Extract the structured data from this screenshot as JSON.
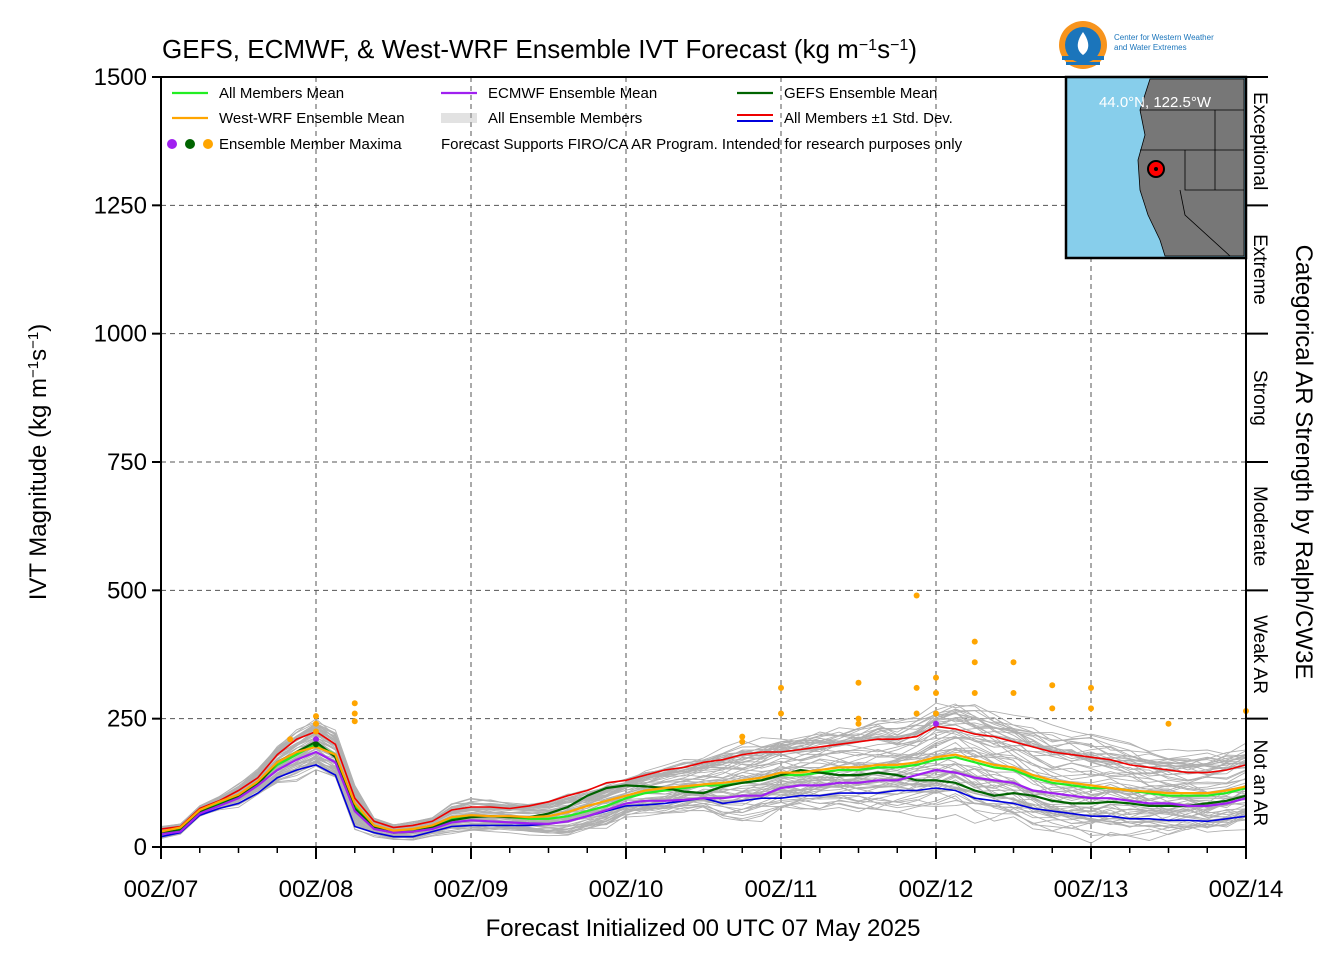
{
  "chart_data": {
    "type": "line",
    "title": "GEFS, ECMWF, & West-WRF Ensemble IVT Forecast (kg m⁻¹s⁻¹)",
    "title_parts": {
      "main": "GEFS, ECMWF, & West-WRF Ensemble IVT Forecast (kg m",
      "sup1": "−1",
      "mid": "s",
      "sup2": "−1",
      "end": ")"
    },
    "xlabel": "Forecast Initialized 00 UTC 07 May 2025",
    "ylabel": "IVT Magnitude (kg m⁻¹s⁻¹)",
    "ylabel_parts": {
      "main": "IVT Magnitude (kg m",
      "sup1": "−1",
      "mid": "s",
      "sup2": "−1",
      "end": ")"
    },
    "right_axis_label": "Categorical AR Strength by Ralph/CW3E",
    "ylim": [
      0,
      1500
    ],
    "xlim_hours": [
      0,
      168
    ],
    "yticks": [
      0,
      250,
      500,
      750,
      1000,
      1250,
      1500
    ],
    "xticks": [
      "00Z/07",
      "00Z/08",
      "00Z/09",
      "00Z/10",
      "00Z/11",
      "00Z/12",
      "00Z/13",
      "00Z/14"
    ],
    "grid": true,
    "categories": [
      {
        "label": "Not an AR",
        "from": 0,
        "to": 250
      },
      {
        "label": "Weak AR",
        "from": 250,
        "to": 500
      },
      {
        "label": "Moderate",
        "from": 500,
        "to": 750
      },
      {
        "label": "Strong",
        "from": 750,
        "to": 1000
      },
      {
        "label": "Extreme",
        "from": 1000,
        "to": 1250
      },
      {
        "label": "Exceptional",
        "from": 1250,
        "to": 1500
      }
    ],
    "legend": [
      {
        "label": "All Members Mean",
        "color": "#22ee22",
        "kind": "line"
      },
      {
        "label": "ECMWF Ensemble Mean",
        "color": "#a020f0",
        "kind": "line"
      },
      {
        "label": "GEFS Ensemble Mean",
        "color": "#006400",
        "kind": "line"
      },
      {
        "label": "West-WRF Ensemble Mean",
        "color": "#ffa500",
        "kind": "line"
      },
      {
        "label": "All Ensemble Members",
        "color": "#b0b0b0",
        "kind": "multiline"
      },
      {
        "label": "All Members ±1 Std. Dev.",
        "colors": [
          "#ee0000",
          "#0000dd"
        ],
        "kind": "double"
      },
      {
        "label": "Ensemble Member Maxima",
        "colors": [
          "#a020f0",
          "#006400",
          "#ffa500"
        ],
        "kind": "dots"
      },
      {
        "label": "Forecast Supports FIRO/CA AR Program. Intended for research purposes only",
        "kind": "note"
      }
    ],
    "series": [
      {
        "name": "All Members Mean",
        "color": "#22ee22",
        "x": [
          0,
          3,
          6,
          9,
          12,
          15,
          18,
          21,
          24,
          27,
          30,
          33,
          36,
          39,
          42,
          45,
          48,
          51,
          54,
          57,
          60,
          63,
          66,
          69,
          72,
          75,
          78,
          81,
          84,
          87,
          90,
          93,
          96,
          99,
          102,
          105,
          108,
          111,
          114,
          117,
          120,
          123,
          126,
          129,
          132,
          135,
          138,
          141,
          144,
          147,
          150,
          153,
          156,
          159,
          162,
          165,
          168
        ],
        "values": [
          28,
          35,
          70,
          85,
          100,
          125,
          160,
          180,
          200,
          180,
          80,
          40,
          30,
          32,
          40,
          55,
          60,
          60,
          58,
          55,
          55,
          60,
          70,
          80,
          95,
          105,
          110,
          115,
          120,
          120,
          125,
          130,
          140,
          140,
          145,
          150,
          150,
          155,
          155,
          160,
          170,
          175,
          165,
          155,
          150,
          135,
          125,
          120,
          115,
          115,
          110,
          105,
          100,
          100,
          100,
          105,
          115
        ]
      },
      {
        "name": "ECMWF Ensemble Mean",
        "color": "#a020f0",
        "x": [
          0,
          3,
          6,
          9,
          12,
          15,
          18,
          21,
          24,
          27,
          30,
          33,
          36,
          39,
          42,
          45,
          48,
          51,
          54,
          57,
          60,
          63,
          66,
          69,
          72,
          75,
          78,
          81,
          84,
          87,
          90,
          93,
          96,
          99,
          102,
          105,
          108,
          111,
          114,
          117,
          120,
          123,
          126,
          129,
          132,
          135,
          138,
          141,
          144,
          147,
          150,
          153,
          156,
          159,
          162,
          165,
          168
        ],
        "values": [
          25,
          30,
          65,
          80,
          95,
          120,
          150,
          170,
          185,
          165,
          70,
          35,
          28,
          30,
          35,
          48,
          52,
          50,
          48,
          46,
          45,
          50,
          60,
          72,
          85,
          90,
          90,
          92,
          95,
          95,
          100,
          100,
          115,
          120,
          120,
          125,
          125,
          130,
          130,
          140,
          150,
          145,
          135,
          130,
          125,
          110,
          105,
          100,
          95,
          95,
          90,
          85,
          85,
          80,
          80,
          85,
          95
        ]
      },
      {
        "name": "GEFS Ensemble Mean",
        "color": "#006400",
        "x": [
          0,
          3,
          6,
          9,
          12,
          15,
          18,
          21,
          24,
          27,
          30,
          33,
          36,
          39,
          42,
          45,
          48,
          51,
          54,
          57,
          60,
          63,
          66,
          69,
          72,
          75,
          78,
          81,
          84,
          87,
          90,
          93,
          96,
          99,
          102,
          105,
          108,
          111,
          114,
          117,
          120,
          123,
          126,
          129,
          132,
          135,
          138,
          141,
          144,
          147,
          150,
          153,
          156,
          159,
          162,
          165,
          168
        ],
        "values": [
          27,
          33,
          68,
          82,
          98,
          122,
          165,
          185,
          205,
          175,
          75,
          38,
          28,
          30,
          38,
          52,
          58,
          60,
          58,
          58,
          65,
          78,
          100,
          115,
          120,
          118,
          115,
          108,
          105,
          118,
          125,
          130,
          140,
          150,
          145,
          140,
          140,
          145,
          140,
          130,
          130,
          125,
          110,
          100,
          105,
          100,
          90,
          85,
          85,
          88,
          85,
          80,
          80,
          80,
          85,
          90,
          100
        ]
      },
      {
        "name": "West-WRF Ensemble Mean",
        "color": "#ffa500",
        "x": [
          0,
          3,
          6,
          9,
          12,
          15,
          18,
          21,
          24,
          27,
          30,
          33,
          36,
          39,
          42,
          45,
          48,
          51,
          54,
          57,
          60,
          63,
          66,
          69,
          72,
          75,
          78,
          81,
          84,
          87,
          90,
          93,
          96,
          99,
          102,
          105,
          108,
          111,
          114,
          117,
          120,
          123,
          126,
          129,
          132,
          135,
          138,
          141,
          144,
          147,
          150,
          153,
          156,
          159,
          162,
          165,
          168
        ],
        "values": [
          30,
          38,
          72,
          88,
          102,
          128,
          165,
          185,
          195,
          180,
          85,
          42,
          32,
          35,
          42,
          58,
          62,
          60,
          60,
          58,
          60,
          68,
          80,
          90,
          100,
          110,
          115,
          118,
          122,
          125,
          130,
          135,
          145,
          145,
          150,
          155,
          155,
          160,
          160,
          165,
          175,
          180,
          170,
          160,
          155,
          140,
          130,
          125,
          120,
          115,
          110,
          108,
          105,
          105,
          105,
          110,
          118
        ]
      },
      {
        "name": "All Members ±1 Std. Dev. (upper)",
        "color": "#ee0000",
        "x": [
          0,
          3,
          6,
          9,
          12,
          15,
          18,
          21,
          24,
          27,
          30,
          33,
          36,
          39,
          42,
          45,
          48,
          51,
          54,
          57,
          60,
          63,
          66,
          69,
          72,
          75,
          78,
          81,
          84,
          87,
          90,
          93,
          96,
          99,
          102,
          105,
          108,
          111,
          114,
          117,
          120,
          123,
          126,
          129,
          132,
          135,
          138,
          141,
          144,
          147,
          150,
          153,
          156,
          159,
          162,
          165,
          168
        ],
        "values": [
          35,
          40,
          75,
          90,
          110,
          135,
          180,
          210,
          225,
          200,
          95,
          50,
          38,
          42,
          50,
          72,
          78,
          78,
          75,
          80,
          88,
          100,
          110,
          125,
          130,
          140,
          150,
          155,
          165,
          170,
          180,
          185,
          185,
          190,
          195,
          200,
          205,
          210,
          210,
          215,
          235,
          230,
          220,
          215,
          205,
          195,
          185,
          180,
          175,
          170,
          160,
          155,
          150,
          145,
          145,
          150,
          160
        ]
      },
      {
        "name": "All Members ±1 Std. Dev. (lower)",
        "color": "#0000dd",
        "x": [
          0,
          3,
          6,
          9,
          12,
          15,
          18,
          21,
          24,
          27,
          30,
          33,
          36,
          39,
          42,
          45,
          48,
          51,
          54,
          57,
          60,
          63,
          66,
          69,
          72,
          75,
          78,
          81,
          84,
          87,
          90,
          93,
          96,
          99,
          102,
          105,
          108,
          111,
          114,
          117,
          120,
          123,
          126,
          129,
          132,
          135,
          138,
          141,
          144,
          147,
          150,
          153,
          156,
          159,
          162,
          165,
          168
        ],
        "values": [
          20,
          28,
          62,
          75,
          85,
          105,
          135,
          150,
          160,
          140,
          40,
          28,
          20,
          20,
          30,
          40,
          42,
          42,
          42,
          42,
          45,
          50,
          60,
          70,
          80,
          82,
          85,
          90,
          95,
          85,
          90,
          95,
          95,
          100,
          100,
          105,
          105,
          105,
          110,
          110,
          115,
          110,
          95,
          90,
          85,
          75,
          70,
          65,
          60,
          60,
          55,
          55,
          52,
          52,
          50,
          55,
          60
        ]
      }
    ],
    "maxima": [
      {
        "x": 20,
        "values": [
          210
        ]
      },
      {
        "x": 24,
        "values": [
          255,
          240,
          225,
          210,
          200
        ]
      },
      {
        "x": 30,
        "values": [
          280,
          260,
          245
        ]
      },
      {
        "x": 90,
        "values": [
          215,
          205
        ]
      },
      {
        "x": 96,
        "values": [
          310,
          260
        ]
      },
      {
        "x": 108,
        "values": [
          320,
          250,
          240
        ]
      },
      {
        "x": 117,
        "values": [
          490,
          310,
          260
        ]
      },
      {
        "x": 120,
        "values": [
          330,
          300,
          260,
          240
        ]
      },
      {
        "x": 126,
        "values": [
          400,
          360,
          300
        ]
      },
      {
        "x": 132,
        "values": [
          360,
          300
        ]
      },
      {
        "x": 138,
        "values": [
          315,
          270
        ]
      },
      {
        "x": 144,
        "values": [
          310,
          270
        ]
      },
      {
        "x": 156,
        "values": [
          240
        ]
      },
      {
        "x": 168,
        "values": [
          265
        ]
      }
    ],
    "inset_map": {
      "label": "44.0°N, 122.5°W",
      "ocean_color": "#87ceeb",
      "land_color": "#777777",
      "marker_color": "#ff0000"
    },
    "logo": {
      "text_line1": "Center for Western Weather",
      "text_line2": "and Water Extremes"
    }
  }
}
